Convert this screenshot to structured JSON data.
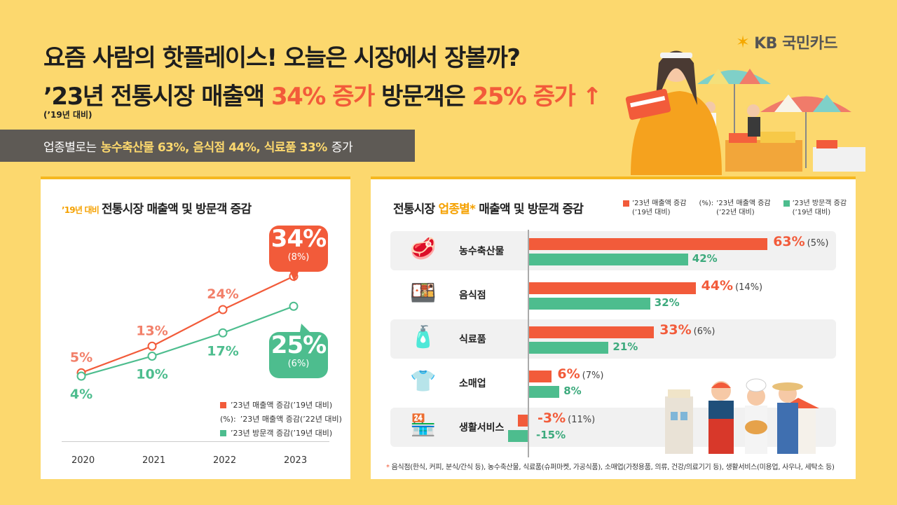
{
  "header": {
    "title1": "요즘 사람의 핫플레이스! 오늘은 시장에서 장볼까?",
    "title2_pre": "’23년 전통시장 매출액 ",
    "title2_hl1": "34% 증가",
    "title2_mid": " 방문객은 ",
    "title2_hl2": "25% 증가",
    "arrow": "↑",
    "base_note": "(’19년 대비)",
    "logo_star": "✶",
    "logo_text": "KB 국민카드"
  },
  "banner": {
    "pre": "업종별로는",
    "highlight": "농수축산물 63%, 음식점 44%, 식료품 33%",
    "post": "증가"
  },
  "colors": {
    "red": "#f25b3a",
    "green": "#4dbd8e",
    "yellow_bg": "#fcd86e",
    "banner": "#5e5a55"
  },
  "left_chart": {
    "title_prefix": "’19년 대비",
    "title": "전통시장 매출액 및 방문객 증감",
    "bubble_red_big": "34%",
    "bubble_red_small": "(8%)",
    "bubble_green_big": "25%",
    "bubble_green_small": "(6%)",
    "legend": [
      {
        "marker": "red",
        "label": "’23년 매출액 증감(’19년 대비)"
      },
      {
        "marker": "(%):",
        "label": "’23년 매출액 증감(’22년 대비)"
      },
      {
        "marker": "green",
        "label": "’23년 방문객 증감(’19년 대비)"
      }
    ],
    "years": [
      "2020",
      "2021",
      "2022",
      "2023"
    ],
    "sales_labels": [
      "5%",
      "13%",
      "24%"
    ],
    "visitor_labels": [
      "4%",
      "10%",
      "17%"
    ]
  },
  "right_chart": {
    "title_pre": "전통시장 ",
    "title_hl": "업종별*",
    "title_post": " 매출액 및 방문객 증감",
    "legend": [
      {
        "marker": "red",
        "line1": "’23년 매출액 증감",
        "line2": "(’19년 대비)"
      },
      {
        "marker": "(%):",
        "line1": "’23년 매출액 증감",
        "line2": "(’22년 대비)"
      },
      {
        "marker": "green",
        "line1": "’23년 방문객 증감",
        "line2": "(’19년 대비)"
      }
    ],
    "categories": [
      {
        "name": "농수축산물",
        "icon": "🥩",
        "sales_lbl": "63%",
        "paren": "(5%)",
        "visit_lbl": "42%"
      },
      {
        "name": "음식점",
        "icon": "🍱",
        "sales_lbl": "44%",
        "paren": "(14%)",
        "visit_lbl": "32%"
      },
      {
        "name": "식료품",
        "icon": "🧴",
        "sales_lbl": "33%",
        "paren": "(6%)",
        "visit_lbl": "21%"
      },
      {
        "name": "소매업",
        "icon": "👕",
        "sales_lbl": "6%",
        "paren": "(7%)",
        "visit_lbl": "8%"
      },
      {
        "name": "생활서비스",
        "icon": "🏪",
        "sales_lbl": "-3%",
        "paren": "(11%)",
        "visit_lbl": "-15%"
      }
    ],
    "footnote_ast": "*",
    "footnote": "음식점(한식, 커피, 분식/간식 등), 농수축산물, 식료품(슈퍼마켓, 가공식품), 소매업(가정용품, 의류, 건강/의료기기 등), 생활서비스(미용업, 사우나, 세탁소 등)"
  },
  "chart_data": [
    {
      "type": "line",
      "title": "’19년 대비 전통시장 매출액 및 방문객 증감",
      "x": [
        "2020",
        "2021",
        "2022",
        "2023"
      ],
      "series": [
        {
          "name": "’23년 매출액 증감(’19년 대비)",
          "values": [
            5,
            13,
            24,
            34
          ],
          "color": "#f25b3a"
        },
        {
          "name": "’23년 방문객 증감(’19년 대비)",
          "values": [
            4,
            10,
            17,
            25
          ],
          "color": "#4dbd8e"
        }
      ],
      "annotations": {
        "2023_sales_vs_22": 8,
        "2023_visitors_vs_22": 6
      },
      "ylim": [
        0,
        40
      ]
    },
    {
      "type": "bar",
      "orientation": "horizontal",
      "title": "전통시장 업종별* 매출액 및 방문객 증감",
      "categories": [
        "농수축산물",
        "음식점",
        "식료품",
        "소매업",
        "생활서비스"
      ],
      "series": [
        {
          "name": "’23년 매출액 증감(’19년 대비)",
          "values": [
            63,
            44,
            33,
            6,
            -3
          ],
          "color": "#f25b3a"
        },
        {
          "name": "’23년 방문객 증감(’19년 대비)",
          "values": [
            42,
            32,
            21,
            8,
            -15
          ],
          "color": "#4dbd8e"
        }
      ],
      "sales_vs_22": [
        5,
        14,
        6,
        7,
        11
      ]
    }
  ]
}
